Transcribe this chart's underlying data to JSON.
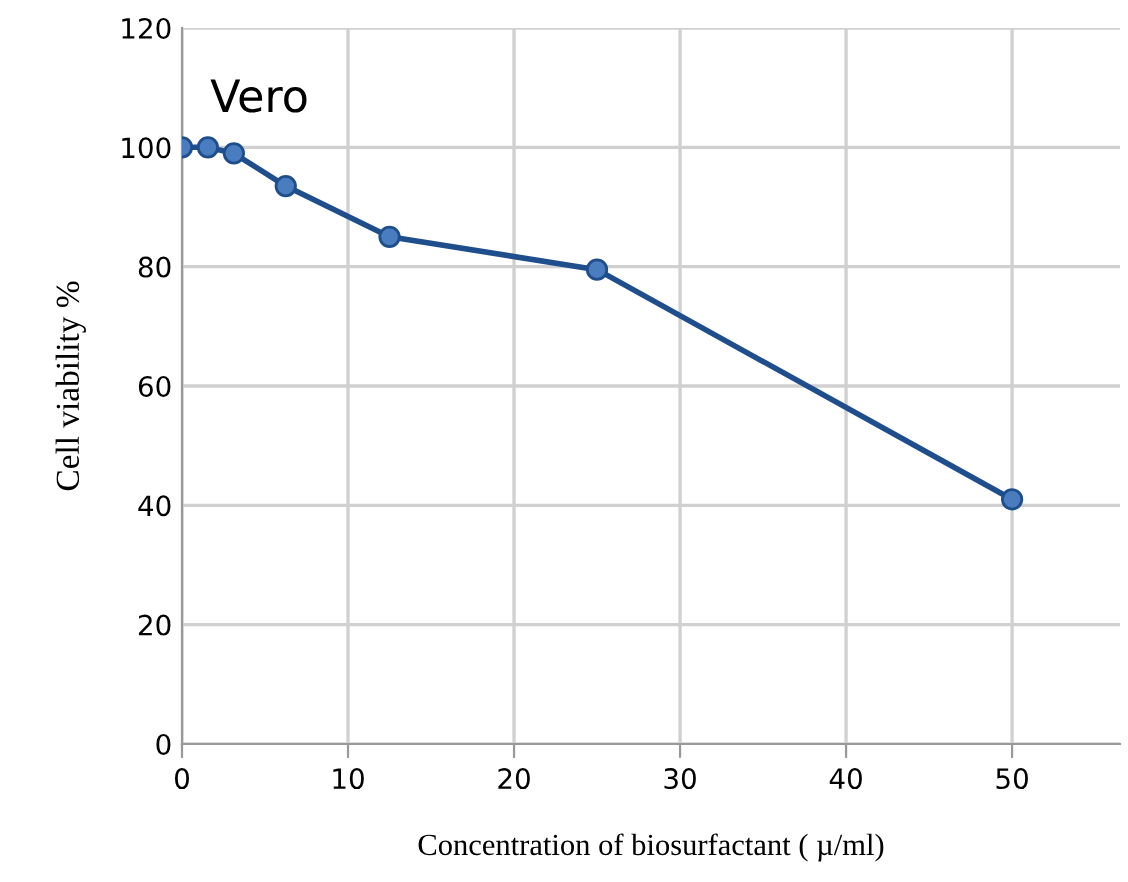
{
  "chart_data": {
    "type": "line",
    "xlabel": "Concentration of biosurfactant ( µ/ml)",
    "ylabel": "Cell viability %",
    "annotations": [
      "Vero"
    ],
    "x": [
      0,
      1.56,
      3.125,
      6.25,
      12.5,
      25,
      50
    ],
    "series": [
      {
        "color": "#1f4e8c",
        "values": [
          100,
          100,
          99,
          93.5,
          85,
          79.5,
          41
        ]
      }
    ],
    "xlim": [
      0,
      56.5
    ],
    "xticks": [
      0,
      10,
      20,
      30,
      40,
      50
    ],
    "ylim": [
      0,
      120
    ],
    "yticks": [
      0,
      20,
      40,
      60,
      80,
      100,
      120
    ],
    "grid": true,
    "marker": "circle",
    "line_style": "solid"
  }
}
